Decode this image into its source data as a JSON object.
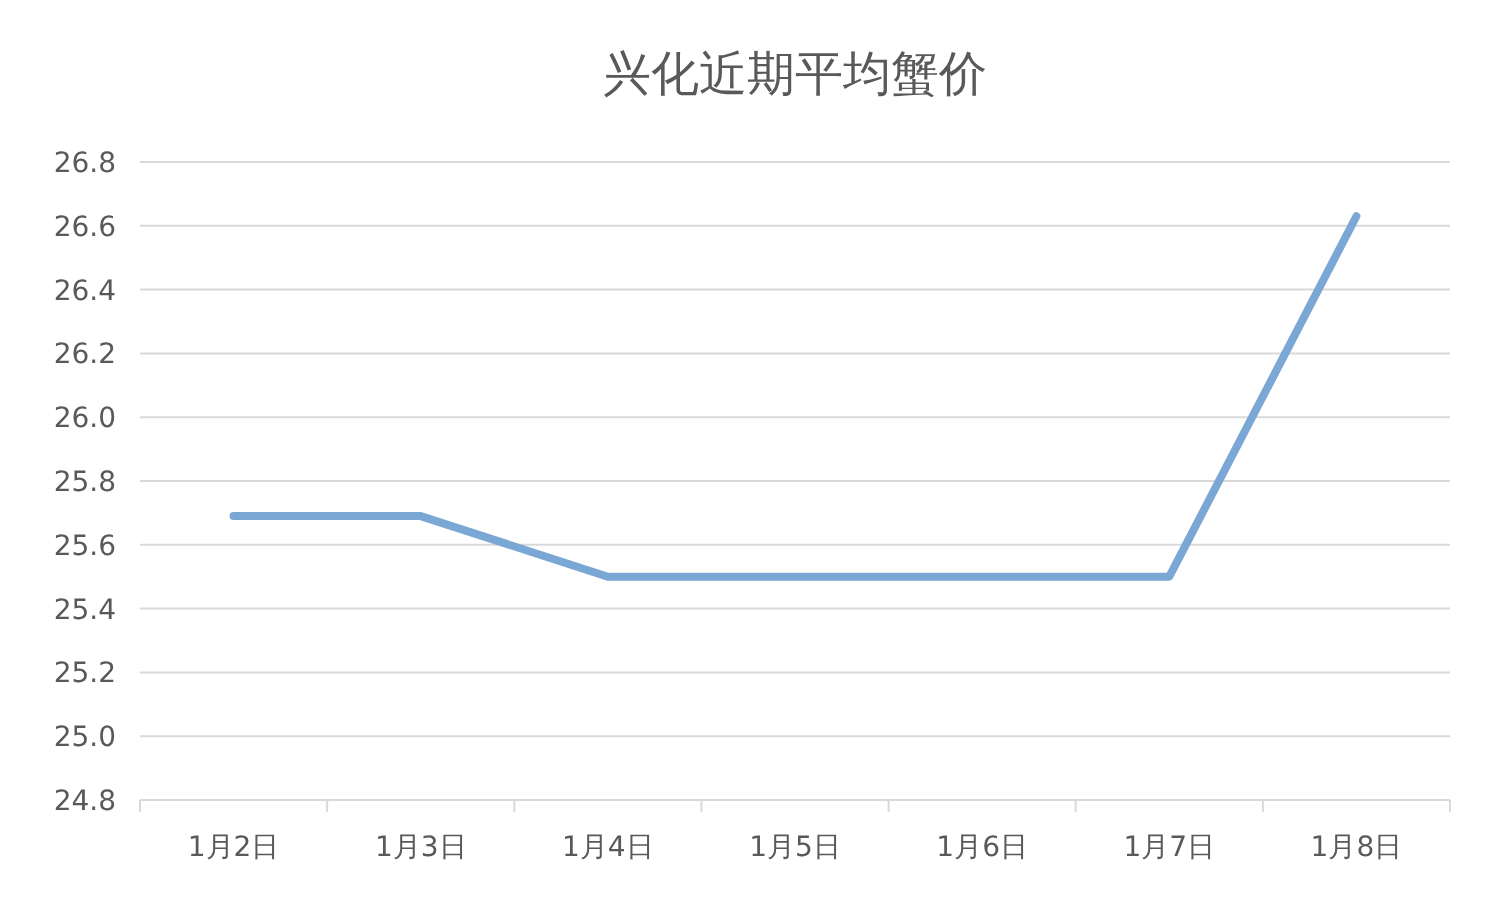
{
  "chart_data": {
    "type": "line",
    "title": "兴化近期平均蟹价",
    "categories": [
      "1月2日",
      "1月3日",
      "1月4日",
      "1月5日",
      "1月6日",
      "1月7日",
      "1月8日"
    ],
    "series": [
      {
        "color": "#7ba7d4",
        "values": [
          25.69,
          25.69,
          25.5,
          25.5,
          25.5,
          25.5,
          26.63
        ]
      }
    ],
    "ylim": [
      24.8,
      26.8
    ],
    "yticks": [
      24.8,
      {
        "value": 25,
        "label": "25.0"
      },
      25.2,
      25.4,
      25.6,
      25.8,
      {
        "value": 26,
        "label": "26.0"
      },
      26.2,
      26.4,
      26.6,
      26.8
    ],
    "grid": "y",
    "marker": "none",
    "line_style": "solid"
  }
}
